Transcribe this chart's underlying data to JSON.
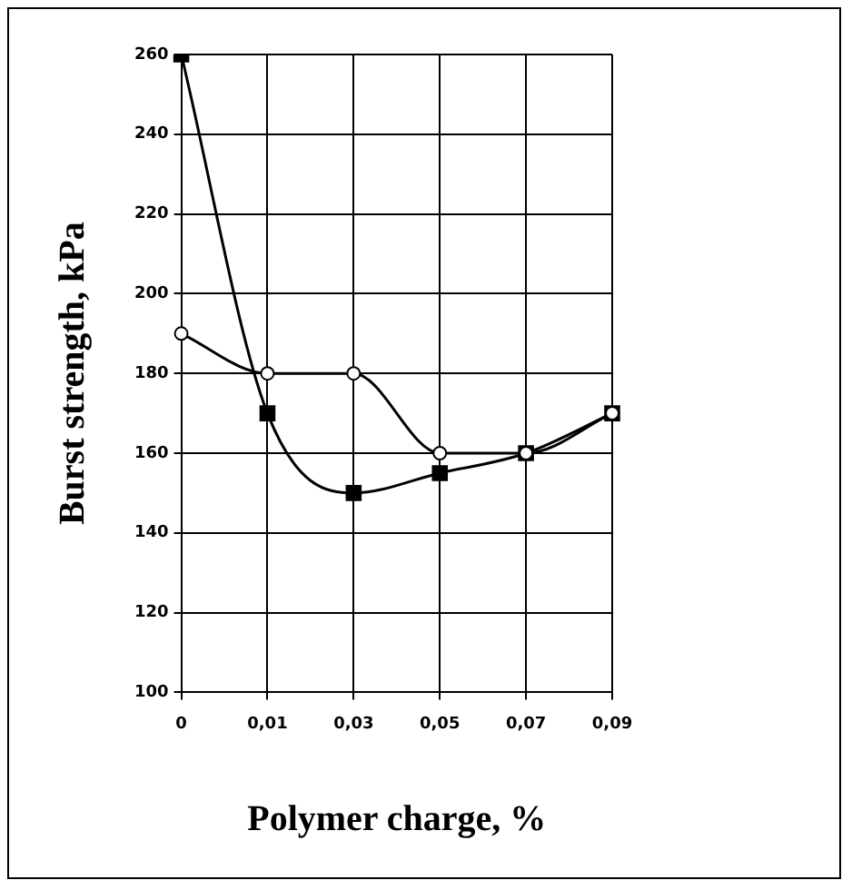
{
  "chart_data": {
    "type": "line",
    "xlabel": "Polymer charge, %",
    "ylabel": "Burst strength, kPa",
    "categories": [
      "0",
      "0,01",
      "0,03",
      "0,05",
      "0,07",
      "0,09"
    ],
    "series": [
      {
        "color": "#000000",
        "marker": "square",
        "values": [
          260,
          170,
          150,
          155,
          160,
          170
        ]
      },
      {
        "color": "#000000",
        "marker": "circle",
        "values": [
          190,
          180,
          180,
          160,
          160,
          170
        ]
      }
    ],
    "ylim": [
      100,
      260
    ],
    "yticks": [
      100,
      120,
      140,
      160,
      180,
      200,
      220,
      240,
      260
    ],
    "grid": true,
    "legend": false
  }
}
